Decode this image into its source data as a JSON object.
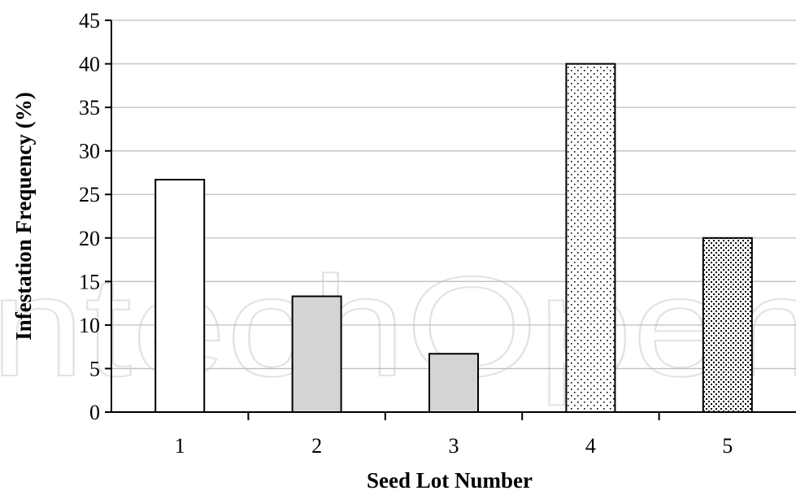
{
  "chart_data": {
    "type": "bar",
    "categories": [
      "1",
      "2",
      "3",
      "4",
      "5"
    ],
    "values": [
      26.7,
      13.3,
      6.7,
      40.0,
      20.0
    ],
    "title": "",
    "xlabel": "Seed Lot Number",
    "ylabel": "Infestation Frequency (%)",
    "ylim": [
      0,
      45
    ],
    "yticks": [
      0,
      5,
      10,
      15,
      20,
      25,
      30,
      35,
      40,
      45
    ],
    "grid": true,
    "legend": "none",
    "bar_fills": [
      "white",
      "gray",
      "gray",
      "dots-sparse",
      "dots-dense"
    ],
    "colors": {
      "gray": "#d3d4d6",
      "grid": "#bfbfbf",
      "axis": "#000000"
    }
  },
  "watermark": "IntechOpen"
}
